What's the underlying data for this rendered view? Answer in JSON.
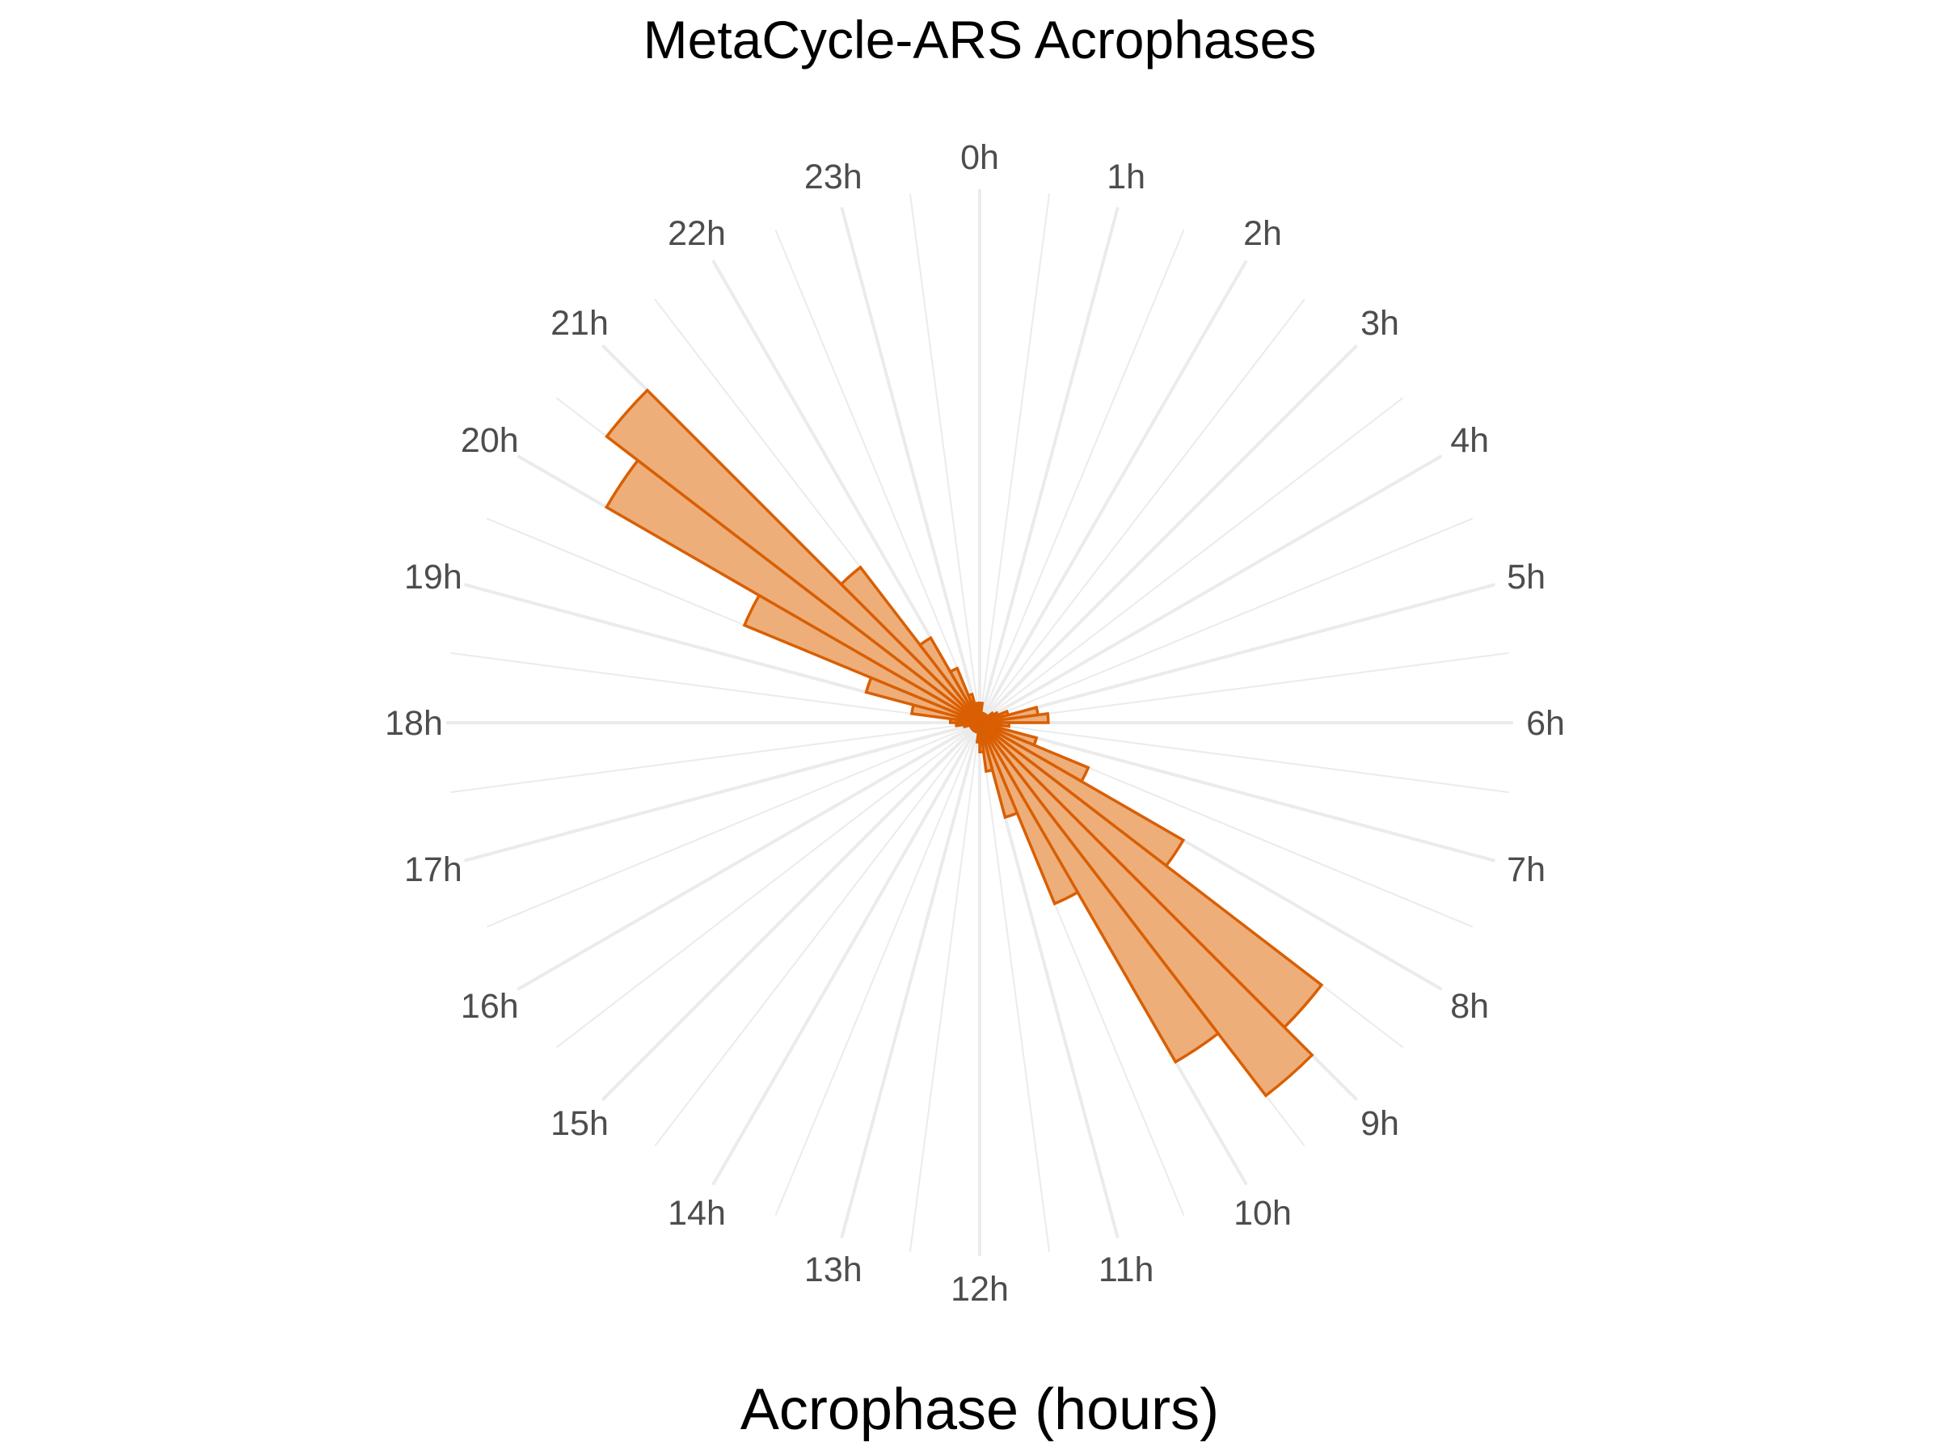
{
  "chart_data": {
    "type": "bar",
    "polar": true,
    "title": "MetaCycle-ARS Acrophases",
    "xlabel": "Acrophase (hours)",
    "ylabel": "",
    "bin_width_hours": 0.5,
    "x_ticks": [
      "0h",
      "1h",
      "2h",
      "3h",
      "4h",
      "5h",
      "6h",
      "7h",
      "8h",
      "9h",
      "10h",
      "11h",
      "12h",
      "13h",
      "14h",
      "15h",
      "16h",
      "17h",
      "18h",
      "19h",
      "20h",
      "21h",
      "22h",
      "23h"
    ],
    "bins": [
      0.0,
      0.5,
      1.0,
      1.5,
      2.0,
      2.5,
      3.0,
      3.5,
      4.0,
      4.5,
      5.0,
      5.5,
      6.0,
      6.5,
      7.0,
      7.5,
      8.0,
      8.5,
      9.0,
      9.5,
      10.0,
      10.5,
      11.0,
      11.5,
      12.0,
      12.5,
      13.0,
      13.5,
      14.0,
      14.5,
      15.0,
      15.5,
      16.0,
      16.5,
      17.0,
      17.5,
      18.0,
      18.5,
      19.0,
      19.5,
      20.0,
      20.5,
      21.0,
      21.5,
      22.0,
      22.5,
      23.0,
      23.5
    ],
    "values": [
      1.0,
      0.5,
      0.5,
      0.5,
      0.5,
      0.5,
      0.5,
      0.8,
      1.0,
      1.5,
      3.0,
      3.5,
      1.5,
      1.0,
      3.0,
      6.0,
      12.0,
      22.0,
      24.0,
      20.0,
      10.0,
      5.0,
      2.5,
      1.5,
      1.0,
      0.5,
      0.5,
      0.5,
      0.5,
      0.5,
      0.5,
      0.5,
      0.5,
      0.5,
      0.8,
      1.2,
      1.5,
      3.5,
      6.0,
      13.0,
      22.0,
      24.0,
      10.0,
      5.0,
      3.0,
      1.5,
      1.0,
      0.5
    ],
    "ymax": 26,
    "colors": {
      "fill": "#edae7a",
      "outline": "#d95f02",
      "grid": "#ebebeb"
    },
    "grid": true,
    "legend": "none"
  }
}
